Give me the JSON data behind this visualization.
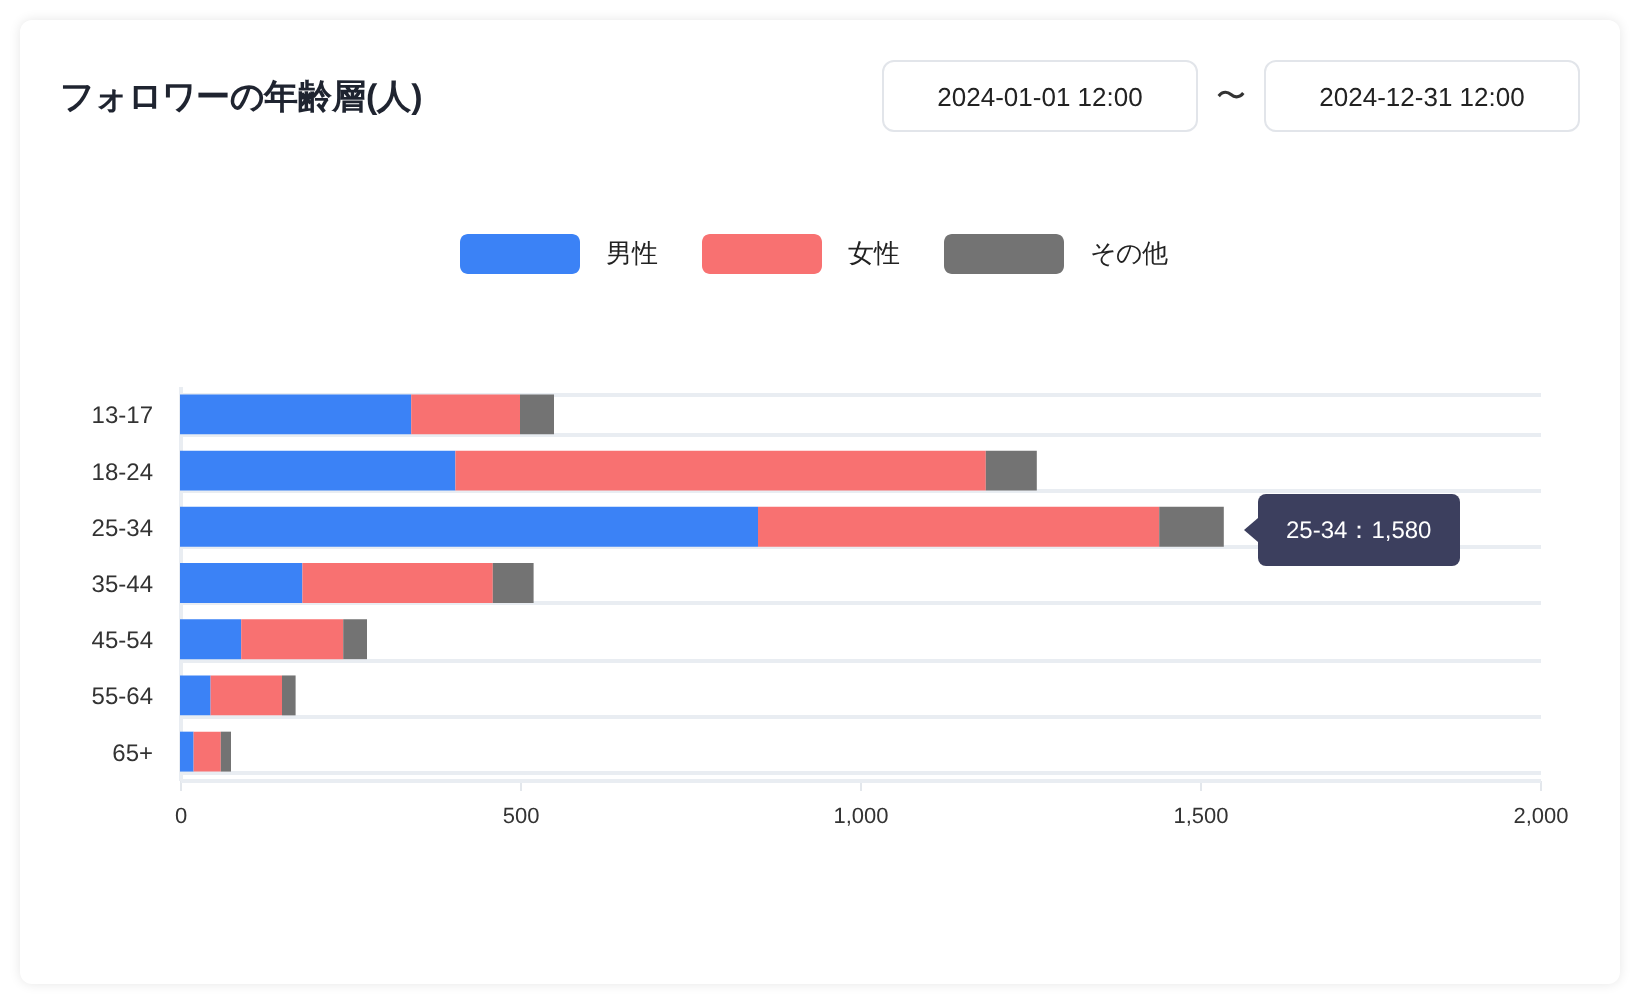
{
  "chart_data": {
    "type": "bar",
    "orientation": "horizontal",
    "stacked": true,
    "title": "フォロワーの年齢層(人)",
    "categories": [
      "13-17",
      "18-24",
      "25-34",
      "35-44",
      "45-54",
      "55-64",
      "65+"
    ],
    "series": [
      {
        "name": "男性",
        "color": "#3b82f6",
        "values": [
          340,
          405,
          850,
          180,
          90,
          45,
          20
        ]
      },
      {
        "name": "女性",
        "color": "#f87171",
        "values": [
          160,
          780,
          590,
          280,
          150,
          105,
          40
        ]
      },
      {
        "name": "その他",
        "color": "#737373",
        "values": [
          50,
          75,
          95,
          60,
          35,
          20,
          15
        ]
      }
    ],
    "xlim": [
      0,
      2000
    ],
    "xticks": [
      0,
      500,
      {
        "value": 1000,
        "label": "1,000"
      },
      {
        "value": 1500,
        "label": "1,500"
      },
      {
        "value": 2000,
        "label": "2,000"
      }
    ],
    "grid": "y",
    "legend": "top",
    "annotations": [
      "2024-01-01 12:00",
      "〜",
      "2024-12-31 12:00",
      "25-34：1,580"
    ]
  }
}
